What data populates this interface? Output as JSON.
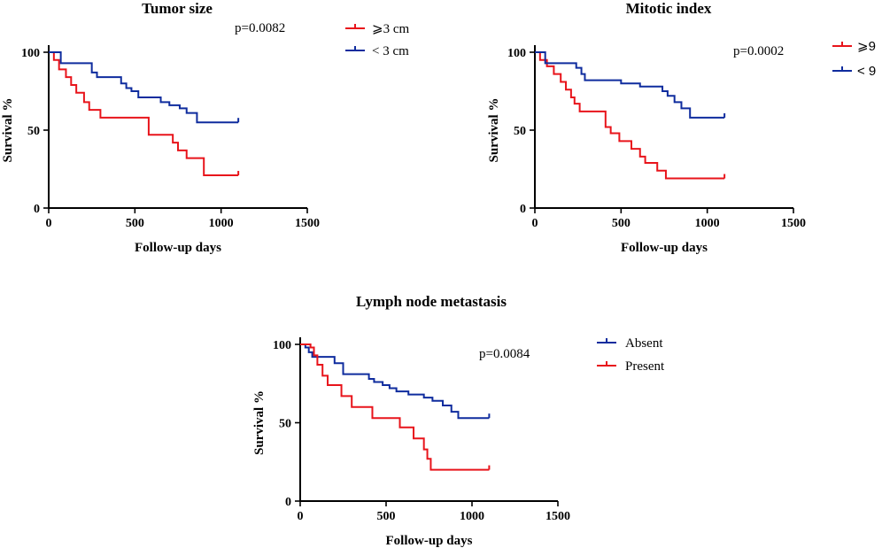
{
  "chart_data": [
    {
      "type": "line",
      "subtype": "kaplan-meier",
      "title": "Tumor size",
      "xlabel": "Follow-up days",
      "ylabel": "Survival %",
      "xlim": [
        0,
        1500
      ],
      "ylim": [
        0,
        100
      ],
      "xticks": [
        0,
        500,
        1000,
        1500
      ],
      "yticks": [
        0,
        50,
        100
      ],
      "pvalue": "p=0.0082",
      "legend_font": "serif",
      "series": [
        {
          "name": "⩾3 cm",
          "color": "#e8141b",
          "x": [
            0,
            30,
            60,
            100,
            130,
            160,
            175,
            205,
            235,
            300,
            580,
            720,
            750,
            800,
            900,
            1100
          ],
          "y": [
            100,
            95,
            89,
            84,
            79,
            74,
            74,
            68,
            63,
            58,
            47,
            42,
            37,
            32,
            21,
            21
          ]
        },
        {
          "name": "< 3 cm",
          "color": "#0f2c9e",
          "x": [
            0,
            70,
            250,
            280,
            420,
            450,
            480,
            520,
            600,
            650,
            700,
            760,
            800,
            860,
            1100
          ],
          "y": [
            100,
            93,
            87,
            84,
            80,
            77,
            75,
            71,
            71,
            68,
            66,
            64,
            61,
            55,
            55
          ]
        }
      ]
    },
    {
      "type": "line",
      "subtype": "kaplan-meier",
      "title": "Mitotic index",
      "xlabel": "Follow-up days",
      "ylabel": "Survival %",
      "xlim": [
        0,
        1500
      ],
      "ylim": [
        0,
        100
      ],
      "xticks": [
        0,
        500,
        1000,
        1500
      ],
      "yticks": [
        0,
        50,
        100
      ],
      "pvalue": "p=0.0002",
      "legend_font": "sans",
      "series": [
        {
          "name": "⩾9",
          "color": "#e8141b",
          "x": [
            0,
            30,
            70,
            110,
            150,
            180,
            210,
            230,
            260,
            410,
            440,
            490,
            560,
            610,
            640,
            710,
            760,
            1100
          ],
          "y": [
            100,
            95,
            91,
            86,
            81,
            76,
            71,
            67,
            62,
            52,
            48,
            43,
            38,
            33,
            29,
            24,
            19,
            19
          ]
        },
        {
          "name": "< 9",
          "color": "#0f2c9e",
          "x": [
            0,
            60,
            240,
            270,
            290,
            500,
            610,
            740,
            770,
            810,
            850,
            900,
            1100
          ],
          "y": [
            100,
            93,
            90,
            86,
            82,
            80,
            78,
            75,
            72,
            68,
            64,
            58,
            58
          ]
        }
      ]
    },
    {
      "type": "line",
      "subtype": "kaplan-meier",
      "title": "Lymph node metastasis",
      "xlabel": "Follow-up days",
      "ylabel": "Survival %",
      "xlim": [
        0,
        1500
      ],
      "ylim": [
        0,
        100
      ],
      "xticks": [
        0,
        500,
        1000,
        1500
      ],
      "yticks": [
        0,
        50,
        100
      ],
      "pvalue": "p=0.0084",
      "legend_font": "serif",
      "series": [
        {
          "name": "Absent",
          "color": "#0f2c9e",
          "x": [
            0,
            30,
            50,
            70,
            200,
            250,
            400,
            430,
            480,
            520,
            560,
            630,
            720,
            770,
            830,
            880,
            920,
            1100
          ],
          "y": [
            100,
            98,
            95,
            92,
            88,
            81,
            78,
            76,
            74,
            72,
            70,
            68,
            66,
            64,
            61,
            57,
            53,
            53
          ]
        },
        {
          "name": "Present",
          "color": "#e8141b",
          "x": [
            0,
            60,
            80,
            100,
            130,
            160,
            240,
            300,
            420,
            580,
            660,
            720,
            740,
            760,
            1100
          ],
          "y": [
            100,
            98,
            93,
            87,
            80,
            74,
            67,
            60,
            53,
            47,
            40,
            33,
            27,
            20,
            20
          ]
        }
      ]
    }
  ]
}
